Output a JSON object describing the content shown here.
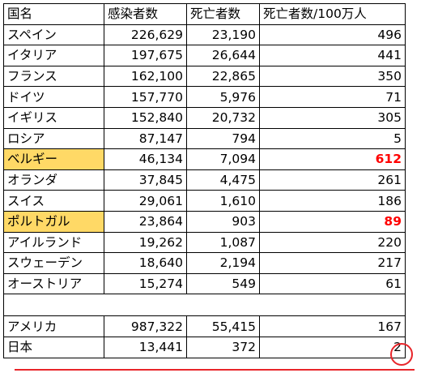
{
  "table": {
    "headers": [
      "国名",
      "感染者数",
      "死亡者数",
      "死亡者数/100万人"
    ],
    "rows": [
      {
        "country": "スペイン",
        "cases": "226,629",
        "deaths": "23,190",
        "rate": "496",
        "highlight": false
      },
      {
        "country": "イタリア",
        "cases": "197,675",
        "deaths": "26,644",
        "rate": "441",
        "highlight": false
      },
      {
        "country": "フランス",
        "cases": "162,100",
        "deaths": "22,865",
        "rate": "350",
        "highlight": false
      },
      {
        "country": "ドイツ",
        "cases": "157,770",
        "deaths": "5,976",
        "rate": "71",
        "highlight": false
      },
      {
        "country": "イギリス",
        "cases": "152,840",
        "deaths": "20,732",
        "rate": "305",
        "highlight": false
      },
      {
        "country": "ロシア",
        "cases": "87,147",
        "deaths": "794",
        "rate": "5",
        "highlight": false
      },
      {
        "country": "ベルギー",
        "cases": "46,134",
        "deaths": "7,094",
        "rate": "612",
        "highlight": true
      },
      {
        "country": "オランダ",
        "cases": "37,845",
        "deaths": "4,475",
        "rate": "261",
        "highlight": false
      },
      {
        "country": "スイス",
        "cases": "29,061",
        "deaths": "1,610",
        "rate": "186",
        "highlight": false
      },
      {
        "country": "ポルトガル",
        "cases": "23,864",
        "deaths": "903",
        "rate": "89",
        "highlight": true
      },
      {
        "country": "アイルランド",
        "cases": "19,262",
        "deaths": "1,087",
        "rate": "220",
        "highlight": false
      },
      {
        "country": "スウェーデン",
        "cases": "18,640",
        "deaths": "2,194",
        "rate": "217",
        "highlight": false
      },
      {
        "country": "オーストリア",
        "cases": "15,274",
        "deaths": "549",
        "rate": "61",
        "highlight": false
      }
    ],
    "extra_rows": [
      {
        "country": "アメリカ",
        "cases": "987,322",
        "deaths": "55,415",
        "rate": "167",
        "highlight": false
      },
      {
        "country": "日本",
        "cases": "13,441",
        "deaths": "372",
        "rate": "2",
        "highlight": false
      }
    ]
  },
  "colors": {
    "highlight_fill": "#ffd966",
    "highlight_text": "#ff0000",
    "annotation": "#e8252a"
  }
}
